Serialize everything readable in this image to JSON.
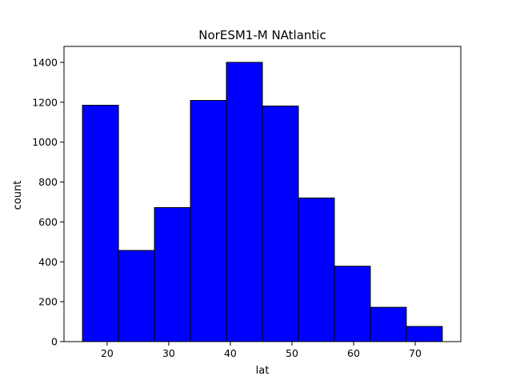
{
  "chart_data": {
    "type": "bar",
    "title": "NorESM1-M  NAtlantic",
    "xlabel": "lat",
    "ylabel": "count",
    "bin_edges": [
      16.0,
      21.84,
      27.68,
      33.52,
      39.36,
      45.2,
      51.04,
      56.88,
      62.72,
      68.56,
      74.4
    ],
    "values": [
      1185,
      457,
      672,
      1209,
      1400,
      1181,
      720,
      378,
      172,
      76
    ],
    "xlim": [
      13.0,
      77.4
    ],
    "ylim": [
      0,
      1480
    ],
    "xticks": [
      20,
      30,
      40,
      50,
      60,
      70
    ],
    "yticks": [
      0,
      200,
      400,
      600,
      800,
      1000,
      1200,
      1400
    ],
    "bar_color": "#0000ff",
    "edge_color": "#000000",
    "grid": false,
    "legend": false
  }
}
